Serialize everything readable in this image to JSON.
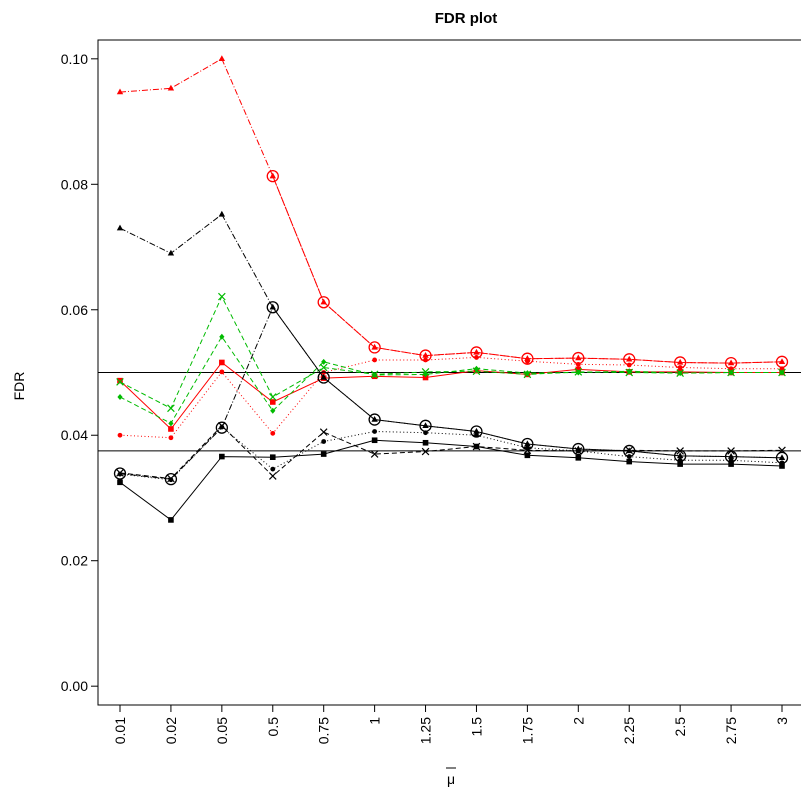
{
  "chart_data": {
    "type": "line",
    "title": "FDR plot",
    "xlabel": "μ",
    "ylabel": "FDR",
    "categories": [
      "0.01",
      "0.02",
      "0.05",
      "0.5",
      "0.75",
      "1",
      "1.25",
      "1.5",
      "1.75",
      "2",
      "2.25",
      "2.5",
      "2.75",
      "3"
    ],
    "yticks": [
      "0.00",
      "0.02",
      "0.04",
      "0.06",
      "0.08",
      "0.10"
    ],
    "ylim": [
      -0.003,
      0.103
    ],
    "grid": false,
    "reference_lines": [
      0.05,
      0.0375
    ],
    "series": [
      {
        "color": "#ff0000",
        "style": "dashdot",
        "marker": "triangle",
        "values": [
          0.0947,
          0.0953,
          0.1,
          0.0813,
          0.0612,
          0.054,
          0.0527,
          0.0532,
          0.0522,
          0.0523,
          0.0521,
          0.0516,
          0.0515,
          0.0517
        ]
      },
      {
        "color": "#ff0000",
        "style": "dashdot",
        "marker": "circle-open",
        "values": [
          null,
          null,
          null,
          0.0813,
          0.0612,
          0.054,
          0.0527,
          0.0532,
          0.0522,
          0.0523,
          0.0521,
          0.0516,
          0.0515,
          0.0517
        ]
      },
      {
        "color": "#ff0000",
        "style": "solid",
        "marker": "square",
        "values": [
          0.0487,
          0.041,
          0.0516,
          0.0453,
          0.0491,
          0.0494,
          0.0492,
          0.0503,
          0.0497,
          0.0505,
          0.0501,
          0.0501,
          0.05,
          0.05
        ]
      },
      {
        "color": "#ff0000",
        "style": "dotted",
        "marker": "dot",
        "values": [
          0.04,
          0.0396,
          0.0501,
          0.0403,
          0.05,
          0.052,
          0.052,
          0.0524,
          0.0518,
          0.0513,
          0.0512,
          0.0508,
          0.0506,
          0.0506
        ]
      },
      {
        "color": "#00bb00",
        "style": "dashed",
        "marker": "cross",
        "values": [
          0.0485,
          0.0443,
          0.0621,
          0.0461,
          0.0508,
          0.0497,
          0.0501,
          0.0502,
          0.0497,
          0.0501,
          0.05,
          0.0499,
          0.05,
          0.05
        ]
      },
      {
        "color": "#00bb00",
        "style": "dashed",
        "marker": "diamond",
        "values": [
          0.0461,
          0.0419,
          0.0557,
          0.0439,
          0.0517,
          0.0496,
          0.0497,
          0.0506,
          0.0499,
          0.05,
          0.0502,
          0.0499,
          0.05,
          0.05
        ]
      },
      {
        "color": "#000000",
        "style": "dashdot",
        "marker": "triangle",
        "values": [
          0.073,
          0.069,
          0.0752,
          0.0604,
          0.0492,
          0.0425,
          0.0415,
          0.0406,
          0.0386,
          0.0378,
          0.0375,
          0.0367,
          0.0366,
          0.0364
        ]
      },
      {
        "color": "#000000",
        "style": "dashdot",
        "marker": "circle-open",
        "values": [
          0.0339,
          0.033,
          0.0412,
          0.0604,
          0.0492,
          0.0425,
          0.0415,
          0.0406,
          0.0386,
          0.0378,
          0.0375,
          0.0367,
          0.0366,
          0.0364
        ]
      },
      {
        "color": "#000000",
        "style": "solid",
        "marker": "square",
        "values": [
          0.0325,
          0.0265,
          0.0366,
          0.0365,
          0.037,
          0.0392,
          0.0388,
          0.0382,
          0.0368,
          0.0364,
          0.0358,
          0.0354,
          0.0354,
          0.0351
        ]
      },
      {
        "color": "#000000",
        "style": "dotted",
        "marker": "dot",
        "values": [
          0.0338,
          0.0329,
          0.0413,
          0.0346,
          0.039,
          0.0406,
          0.0404,
          0.04,
          0.038,
          0.0375,
          0.0366,
          0.036,
          0.036,
          0.0356
        ]
      },
      {
        "color": "#000000",
        "style": "dashed",
        "marker": "cross",
        "values": [
          0.034,
          0.0331,
          0.0415,
          0.0335,
          0.0405,
          0.037,
          0.0374,
          0.0382,
          0.0376,
          0.0375,
          0.0376,
          0.0375,
          0.0375,
          0.0376
        ]
      }
    ]
  }
}
